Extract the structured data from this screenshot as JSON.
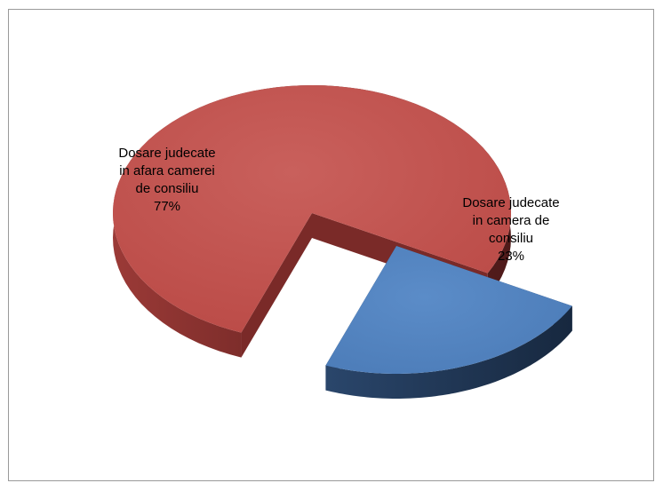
{
  "chart_data": {
    "type": "pie",
    "style": "3d-exploded",
    "slices": [
      {
        "label_lines": [
          "Dosare judecate",
          "in afara camerei",
          "de consiliu",
          "77%"
        ],
        "value": 77,
        "color": "#c0504d",
        "side_color": "#7a2a28"
      },
      {
        "label_lines": [
          "Dosare judecate",
          "in camera de",
          "consiliu",
          "23%"
        ],
        "value": 23,
        "color": "#4f81bd",
        "side_color": "#1f3552"
      }
    ],
    "legend": "none",
    "title": ""
  }
}
